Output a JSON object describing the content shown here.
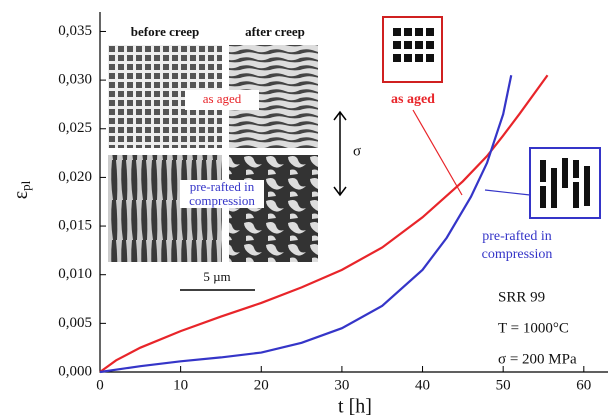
{
  "chart_data": {
    "type": "line",
    "x_label": "t [h]",
    "y_label": {
      "symbol": "ε",
      "subscript": "pl"
    },
    "xlim": [
      0,
      63
    ],
    "ylim": [
      0,
      0.037
    ],
    "xticks": [
      0,
      10,
      20,
      30,
      40,
      50,
      60
    ],
    "yticks": [
      {
        "value": 0,
        "label": "0,000"
      },
      {
        "value": 0.005,
        "label": "0,005"
      },
      {
        "value": 0.01,
        "label": "0,010"
      },
      {
        "value": 0.015,
        "label": "0,015"
      },
      {
        "value": 0.02,
        "label": "0,020"
      },
      {
        "value": 0.025,
        "label": "0,025"
      },
      {
        "value": 0.03,
        "label": "0,030"
      },
      {
        "value": 0.035,
        "label": "0,035"
      }
    ],
    "series": [
      {
        "name": "as aged",
        "color": "#e8252a",
        "x": [
          0,
          2,
          5,
          10,
          15,
          20,
          25,
          30,
          35,
          40,
          45,
          48,
          50,
          52,
          55.5
        ],
        "values": [
          0,
          0.0012,
          0.0025,
          0.0042,
          0.0057,
          0.0071,
          0.0087,
          0.0105,
          0.0128,
          0.0159,
          0.0196,
          0.0222,
          0.0243,
          0.0265,
          0.0305
        ]
      },
      {
        "name": "pre-rafted in compression",
        "color": "#3535c8",
        "x": [
          0,
          5,
          10,
          15,
          20,
          25,
          30,
          35,
          40,
          43,
          46,
          48,
          50,
          51
        ],
        "values": [
          0,
          0.0006,
          0.0011,
          0.0015,
          0.002,
          0.003,
          0.0045,
          0.0068,
          0.0105,
          0.0138,
          0.018,
          0.0215,
          0.0265,
          0.0305
        ]
      }
    ],
    "inset": {
      "before": "before creep",
      "after": "after creep",
      "as_aged": "as aged",
      "pre_rafted": "pre-rafted in compression",
      "scale": "5 µm",
      "stress": "σ"
    },
    "conditions": [
      "SRR 99",
      "T = 1000°C",
      "σ = 200 MPa"
    ]
  }
}
